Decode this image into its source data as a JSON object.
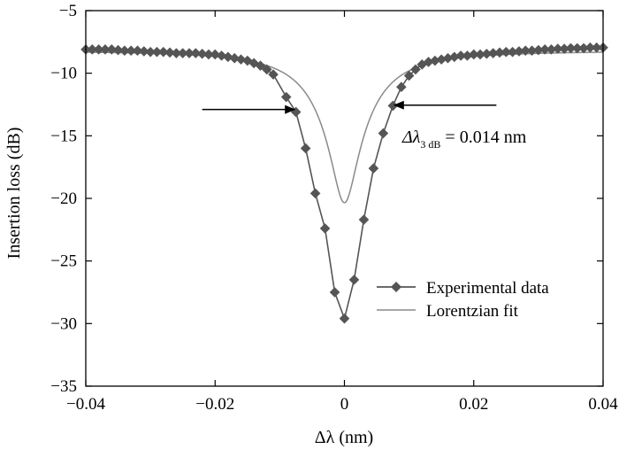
{
  "chart_data": {
    "type": "line",
    "title": "",
    "xlabel": "Δλ (nm)",
    "ylabel": "Insertion loss (dB)",
    "xlim": [
      -0.04,
      0.04
    ],
    "ylim": [
      -35,
      -5
    ],
    "grid": false,
    "legend_position": "lower-right",
    "x_ticks": [
      -0.04,
      -0.02,
      0,
      0.02,
      0.04
    ],
    "x_tick_labels": [
      "−0.04",
      "−0.02",
      "0",
      "0.02",
      "0.04"
    ],
    "y_ticks": [
      -5,
      -10,
      -15,
      -20,
      -25,
      -30,
      -35
    ],
    "y_tick_labels": [
      "−5",
      "−10",
      "−15",
      "−20",
      "−25",
      "−30",
      "−35"
    ],
    "series": [
      {
        "name": "Experimental data",
        "style": "line-diamond-markers",
        "color": "#555555",
        "x": [
          -0.04,
          -0.039,
          -0.038,
          -0.037,
          -0.036,
          -0.035,
          -0.034,
          -0.033,
          -0.032,
          -0.031,
          -0.03,
          -0.029,
          -0.028,
          -0.027,
          -0.026,
          -0.025,
          -0.024,
          -0.023,
          -0.022,
          -0.021,
          -0.02,
          -0.019,
          -0.018,
          -0.017,
          -0.016,
          -0.015,
          -0.014,
          -0.013,
          -0.012,
          -0.011,
          -0.009,
          -0.0075,
          -0.006,
          -0.0045,
          -0.003,
          -0.0015,
          0.0,
          0.0015,
          0.003,
          0.0045,
          0.006,
          0.0075,
          0.0088,
          0.01,
          0.011,
          0.012,
          0.013,
          0.014,
          0.015,
          0.016,
          0.017,
          0.018,
          0.019,
          0.02,
          0.021,
          0.022,
          0.023,
          0.024,
          0.025,
          0.026,
          0.027,
          0.028,
          0.029,
          0.03,
          0.031,
          0.032,
          0.033,
          0.034,
          0.035,
          0.036,
          0.037,
          0.038,
          0.039,
          0.04
        ],
        "y": [
          -8.1,
          -8.1,
          -8.1,
          -8.1,
          -8.1,
          -8.15,
          -8.2,
          -8.2,
          -8.2,
          -8.25,
          -8.3,
          -8.3,
          -8.3,
          -8.35,
          -8.4,
          -8.4,
          -8.4,
          -8.4,
          -8.45,
          -8.5,
          -8.5,
          -8.6,
          -8.7,
          -8.8,
          -8.9,
          -9.0,
          -9.2,
          -9.4,
          -9.7,
          -10.1,
          -11.9,
          -13.1,
          -16.0,
          -19.6,
          -22.4,
          -27.5,
          -29.6,
          -26.5,
          -21.7,
          -17.6,
          -14.8,
          -12.6,
          -11.1,
          -10.2,
          -9.7,
          -9.3,
          -9.1,
          -9.0,
          -8.9,
          -8.8,
          -8.7,
          -8.6,
          -8.6,
          -8.5,
          -8.5,
          -8.45,
          -8.4,
          -8.35,
          -8.3,
          -8.3,
          -8.25,
          -8.2,
          -8.2,
          -8.15,
          -8.1,
          -8.1,
          -8.05,
          -8.05,
          -8.0,
          -8.0,
          -8.0,
          -7.95,
          -7.95,
          -7.95
        ]
      },
      {
        "name": "Lorentzian fit",
        "style": "line",
        "color": "#8a8a8a",
        "model": "lorentzian",
        "baseline": -8.2,
        "center": 0.0,
        "depth_linear": 0.939,
        "fwhm": 0.014
      }
    ],
    "annotations": [
      {
        "text_main": "Δλ",
        "text_sub": "3 dB",
        "text_rest": " = 0.014 nm",
        "arrows": [
          {
            "from": [
              -0.022,
              -12.9
            ],
            "to": [
              -0.0077,
              -12.9
            ]
          },
          {
            "from": [
              0.0235,
              -12.55
            ],
            "to": [
              0.0077,
              -12.55
            ]
          }
        ]
      }
    ]
  }
}
